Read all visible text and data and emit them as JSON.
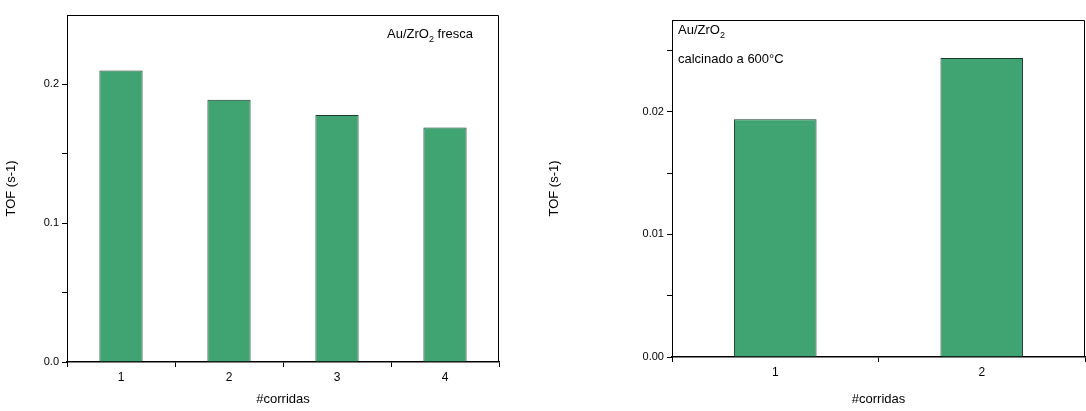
{
  "chart_data": [
    {
      "type": "bar",
      "categories": [
        "1",
        "2",
        "3",
        "4"
      ],
      "values": [
        0.21,
        0.189,
        0.178,
        0.169
      ],
      "color": "#3fa472",
      "ylim": [
        0,
        0.25
      ],
      "yticks": [
        {
          "value": 0,
          "label": "0.0"
        },
        {
          "value": 0.05,
          "label": null
        },
        0.1,
        {
          "value": 0.15,
          "label": null
        },
        0.2
      ],
      "xlabel": "#corridas",
      "ylabel": "TOF (s-1)",
      "annotations": [
        "Au/ZrO$_{2}$ fresca"
      ]
    },
    {
      "type": "bar",
      "categories": [
        "1",
        "2"
      ],
      "values": [
        0.0194,
        0.0244
      ],
      "color": "#3fa472",
      "ylim": [
        0,
        0.0275
      ],
      "yticks": [
        {
          "value": 0,
          "label": "0.00"
        },
        {
          "value": 0.005,
          "label": null
        },
        0.01,
        {
          "value": 0.015,
          "label": null
        },
        0.02,
        {
          "value": 0.025,
          "label": null
        }
      ],
      "xlabel": "#corridas",
      "ylabel": "TOF (s-1)",
      "annotations": [
        "Au/ZrO$_{2}$",
        "calcinado a 600°C"
      ]
    }
  ]
}
